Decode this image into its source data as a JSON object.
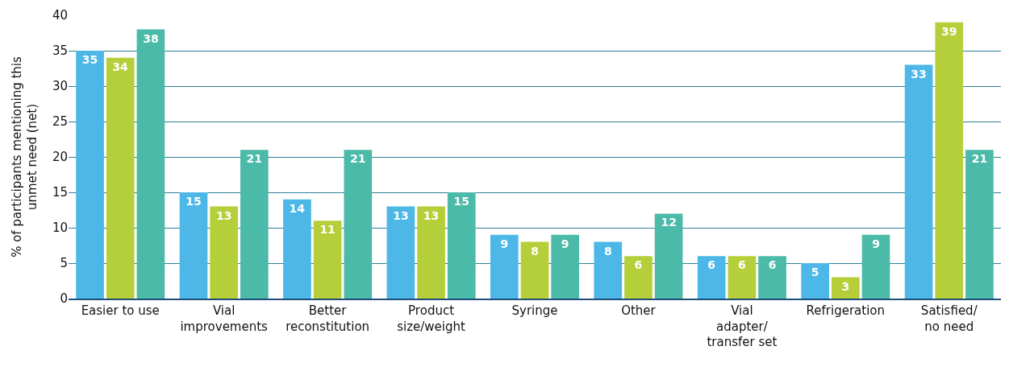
{
  "chart_data": {
    "type": "bar",
    "ylabel": "% of participants mentioning this\nunmet need (net)",
    "categories": [
      "Easier to use",
      "Vial\nimprovements",
      "Better\nreconstitution",
      "Product\nsize/weight",
      "Syringe",
      "Other",
      "Vial\nadapter/\ntransfer set",
      "Refrigeration",
      "Satisfied/\nno need"
    ],
    "series": [
      {
        "color": "#4db8e8",
        "values": [
          35,
          15,
          14,
          13,
          9,
          8,
          6,
          5,
          33
        ]
      },
      {
        "color": "#b5cf3a",
        "values": [
          34,
          13,
          11,
          13,
          8,
          6,
          6,
          3,
          39
        ]
      },
      {
        "color": "#4cbaa8",
        "values": [
          38,
          21,
          21,
          15,
          9,
          12,
          6,
          9,
          21
        ]
      }
    ],
    "ylim": [
      0,
      40
    ],
    "yticks": [
      0,
      5,
      10,
      15,
      20,
      25,
      30,
      35,
      40
    ],
    "grid": "y",
    "data_labels": true
  }
}
